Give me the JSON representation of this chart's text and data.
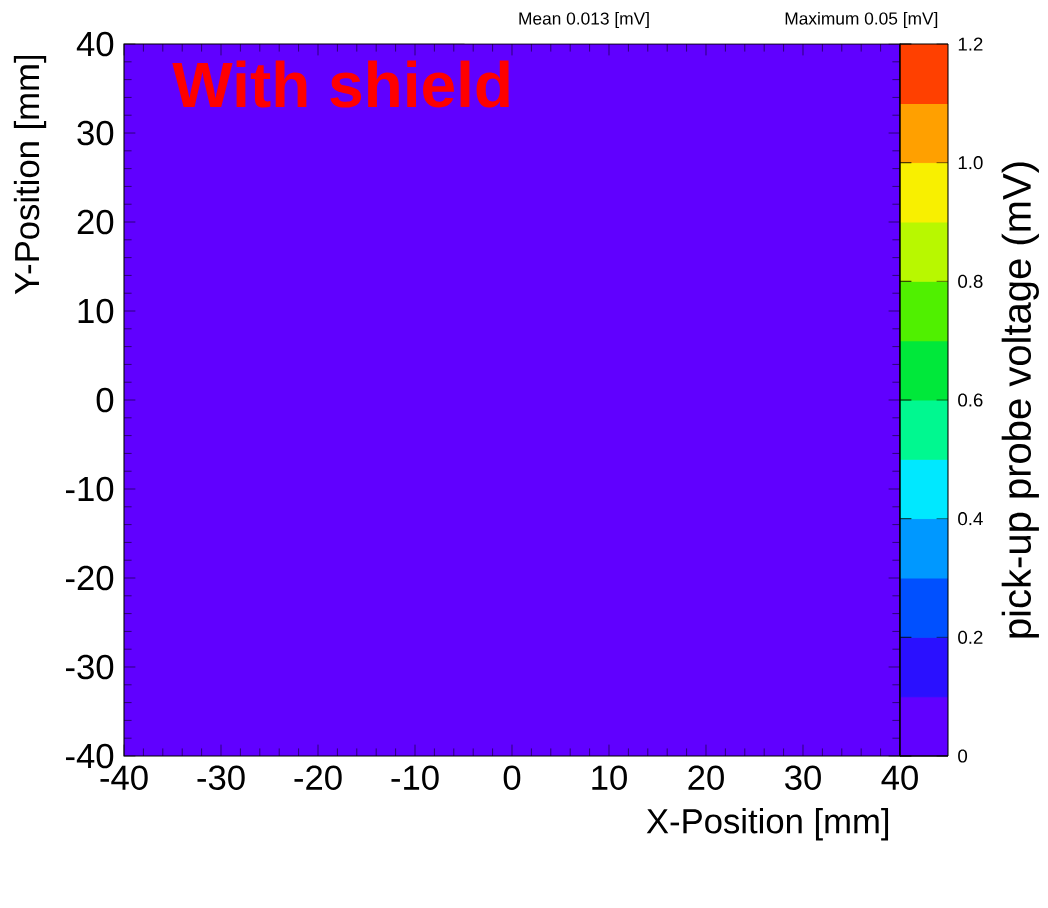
{
  "chart_data": {
    "type": "heatmap",
    "title": "With shield",
    "xlabel": "X-Position [mm]",
    "ylabel": "Y-Position [mm]",
    "clabel": "pick-up probe voltage (mV)",
    "annotations": [
      "Mean 0.013 [mV]",
      "Maximum 0.05 [mV]"
    ],
    "xlim": [
      -40,
      40
    ],
    "ylim": [
      -40,
      40
    ],
    "xticks": [
      -40,
      -30,
      -20,
      -10,
      0,
      10,
      20,
      30,
      40
    ],
    "yticks": [
      -40,
      -30,
      -20,
      -10,
      0,
      10,
      20,
      30,
      40
    ],
    "cells": [
      [
        0
      ]
    ],
    "clim": [
      0,
      1.2
    ],
    "cticks": [
      0,
      0.2,
      0.4,
      0.6,
      0.8,
      {
        "value": 1,
        "label": "1.0"
      },
      1.2
    ]
  }
}
